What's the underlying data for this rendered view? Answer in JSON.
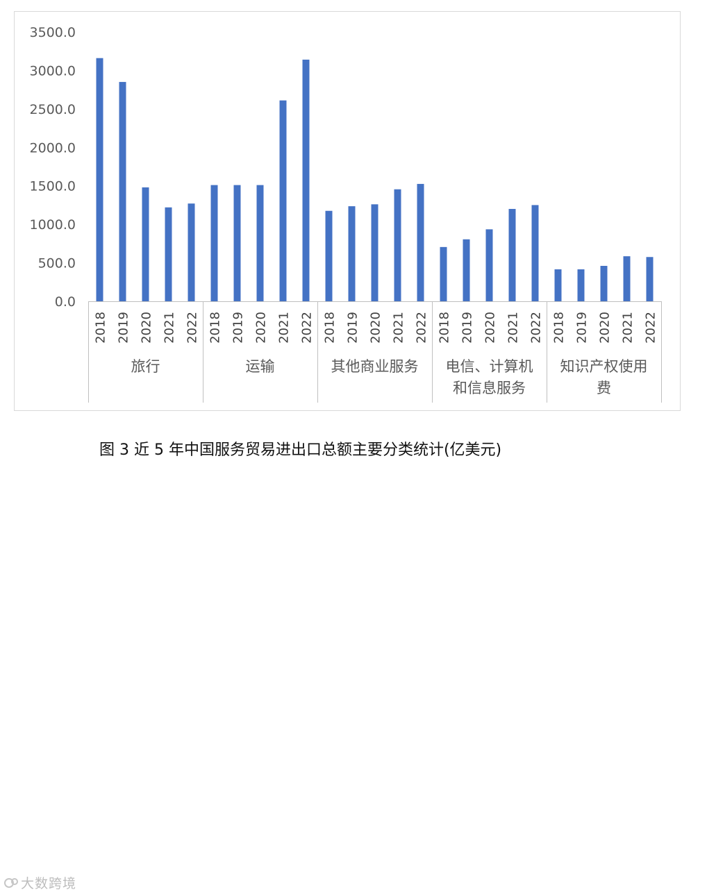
{
  "chart_data": {
    "type": "bar",
    "ylim": [
      0,
      3500
    ],
    "yticks": [
      "0.0",
      "500.0",
      "1000.0",
      "1500.0",
      "2000.0",
      "2500.0",
      "3000.0",
      "3500.0"
    ],
    "groups": [
      {
        "label_lines": [
          "旅行"
        ],
        "years": [
          "2018",
          "2019",
          "2020",
          "2021",
          "2022"
        ],
        "values": [
          3160,
          2850,
          1480,
          1220,
          1270
        ]
      },
      {
        "label_lines": [
          "运输"
        ],
        "years": [
          "2018",
          "2019",
          "2020",
          "2021",
          "2022"
        ],
        "values": [
          1510,
          1510,
          1510,
          2610,
          3140
        ]
      },
      {
        "label_lines": [
          "其他商业服务"
        ],
        "years": [
          "2018",
          "2019",
          "2020",
          "2021",
          "2022"
        ],
        "values": [
          1175,
          1235,
          1260,
          1455,
          1525
        ]
      },
      {
        "label_lines": [
          "电信、计算机",
          "和信息服务"
        ],
        "years": [
          "2018",
          "2019",
          "2020",
          "2021",
          "2022"
        ],
        "values": [
          705,
          805,
          935,
          1200,
          1250
        ]
      },
      {
        "label_lines": [
          "知识产权使用",
          "费"
        ],
        "years": [
          "2018",
          "2019",
          "2020",
          "2021",
          "2022"
        ],
        "values": [
          415,
          415,
          460,
          585,
          575
        ]
      }
    ],
    "bar_color": "#4472C4",
    "grid": false,
    "legend": "none"
  },
  "caption": "图 3  近 5 年中国服务贸易进出口总额主要分类统计(亿美元)",
  "watermark": "大数跨境"
}
